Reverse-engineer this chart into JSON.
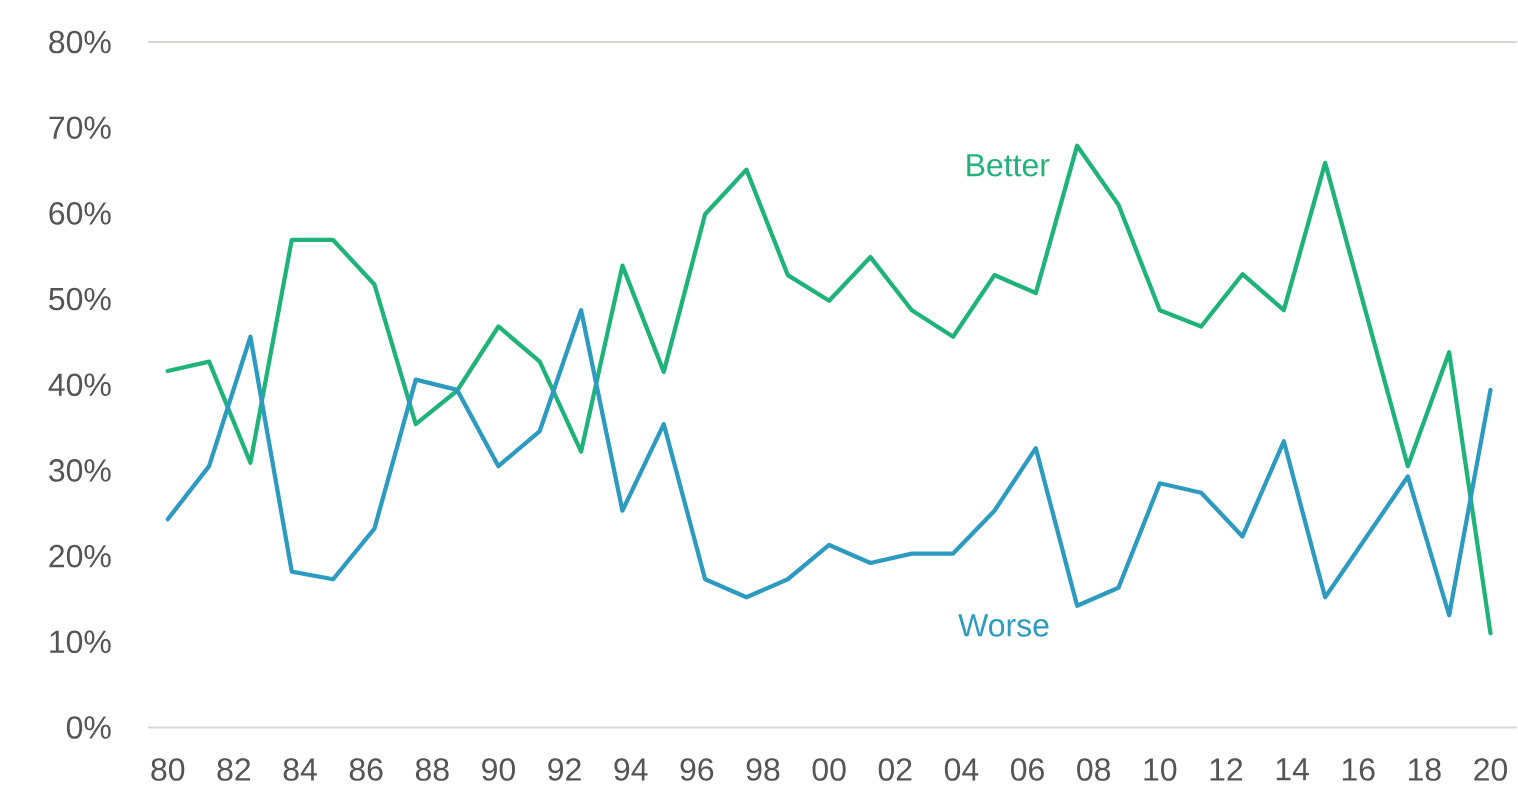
{
  "chart_data": {
    "type": "line",
    "x": [
      1980,
      1981.25,
      1982.5,
      1983.75,
      1985,
      1986.25,
      1987.5,
      1988.75,
      1990,
      1991.25,
      1992.5,
      1993.75,
      1995,
      1996.25,
      1997.5,
      1998.75,
      2000,
      2001.25,
      2002.5,
      2003.75,
      2005,
      2006.25,
      2007.5,
      2008.75,
      2010,
      2011.25,
      2012.5,
      2013.75,
      2015,
      2017.5,
      2018.75,
      2020
    ],
    "series": [
      {
        "name": "Better",
        "color": "#1fb37a",
        "values": [
          41.6,
          42.7,
          30.9,
          56.9,
          56.9,
          51.7,
          35.4,
          39.3,
          46.8,
          42.7,
          32.2,
          53.9,
          41.5,
          59.9,
          65.1,
          52.8,
          49.8,
          54.9,
          48.7,
          45.6,
          52.8,
          50.7,
          67.9,
          61.0,
          48.7,
          46.8,
          52.9,
          48.7,
          65.9,
          30.5,
          43.8,
          11.0
        ]
      },
      {
        "name": "Worse",
        "color": "#2d9ac0",
        "values": [
          24.3,
          30.5,
          45.6,
          18.2,
          17.3,
          23.2,
          40.6,
          39.4,
          30.5,
          34.6,
          48.7,
          25.3,
          35.4,
          17.3,
          15.2,
          17.3,
          21.3,
          19.2,
          20.3,
          20.3,
          25.3,
          32.6,
          14.2,
          16.3,
          28.5,
          27.4,
          22.3,
          33.4,
          15.2,
          29.3,
          13.1,
          39.4
        ]
      }
    ],
    "xlim": [
      1979.4,
      2020.8
    ],
    "xticks": [
      {
        "value": 1980,
        "label": "80"
      },
      {
        "value": 1982,
        "label": "82"
      },
      {
        "value": 1984,
        "label": "84"
      },
      {
        "value": 1986,
        "label": "86"
      },
      {
        "value": 1988,
        "label": "88"
      },
      {
        "value": 1990,
        "label": "90"
      },
      {
        "value": 1992,
        "label": "92"
      },
      {
        "value": 1994,
        "label": "94"
      },
      {
        "value": 1996,
        "label": "96"
      },
      {
        "value": 1998,
        "label": "98"
      },
      {
        "value": 2000,
        "label": "00"
      },
      {
        "value": 2002,
        "label": "02"
      },
      {
        "value": 2004,
        "label": "04"
      },
      {
        "value": 2006,
        "label": "06"
      },
      {
        "value": 2008,
        "label": "08"
      },
      {
        "value": 2010,
        "label": "10"
      },
      {
        "value": 2012,
        "label": "12"
      },
      {
        "value": 2014,
        "label": "14"
      },
      {
        "value": 2016,
        "label": "16"
      },
      {
        "value": 2018,
        "label": "18"
      },
      {
        "value": 2020,
        "label": "20"
      }
    ],
    "ylim": [
      0,
      80
    ],
    "yticks": [
      {
        "value": 0,
        "label": "0%"
      },
      {
        "value": 10,
        "label": "10%"
      },
      {
        "value": 20,
        "label": "20%"
      },
      {
        "value": 30,
        "label": "30%"
      },
      {
        "value": 40,
        "label": "40%"
      },
      {
        "value": 50,
        "label": "50%"
      },
      {
        "value": 60,
        "label": "60%"
      },
      {
        "value": 70,
        "label": "70%"
      },
      {
        "value": 80,
        "label": "80%"
      }
    ]
  }
}
